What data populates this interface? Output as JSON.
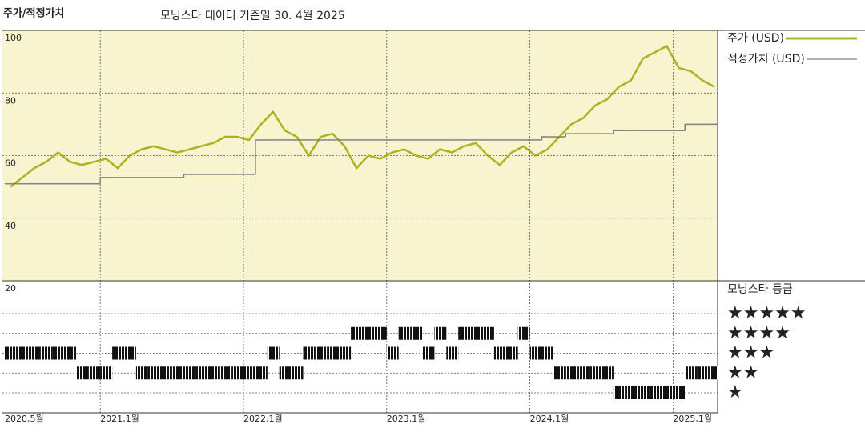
{
  "chart_data": [
    {
      "type": "line",
      "title": "주가/적정가치",
      "subtitle": "모닝스타 데이터 기준일 30. 4월 2025",
      "x": [
        "2020-05",
        "2020-06",
        "2020-07",
        "2020-08",
        "2020-09",
        "2020-10",
        "2020-11",
        "2020-12",
        "2021-01",
        "2021-02",
        "2021-03",
        "2021-04",
        "2021-05",
        "2021-06",
        "2021-07",
        "2021-08",
        "2021-09",
        "2021-10",
        "2021-11",
        "2021-12",
        "2022-01",
        "2022-02",
        "2022-03",
        "2022-04",
        "2022-05",
        "2022-06",
        "2022-07",
        "2022-08",
        "2022-09",
        "2022-10",
        "2022-11",
        "2022-12",
        "2023-01",
        "2023-02",
        "2023-03",
        "2023-04",
        "2023-05",
        "2023-06",
        "2023-07",
        "2023-08",
        "2023-09",
        "2023-10",
        "2023-11",
        "2023-12",
        "2024-01",
        "2024-02",
        "2024-03",
        "2024-04",
        "2024-05",
        "2024-06",
        "2024-07",
        "2024-08",
        "2024-09",
        "2024-10",
        "2024-11",
        "2024-12",
        "2025-01",
        "2025-02",
        "2025-03",
        "2025-04"
      ],
      "series": [
        {
          "name": "주가 (USD)",
          "color": "#a9b41f",
          "values": [
            50,
            53,
            56,
            58,
            61,
            58,
            57,
            58,
            59,
            56,
            60,
            62,
            63,
            62,
            61,
            62,
            63,
            64,
            66,
            66,
            65,
            70,
            74,
            68,
            66,
            60,
            66,
            67,
            63,
            56,
            60,
            59,
            61,
            62,
            60,
            59,
            62,
            61,
            63,
            64,
            60,
            57,
            61,
            63,
            60,
            62,
            66,
            70,
            72,
            76,
            78,
            82,
            84,
            91,
            93,
            95,
            88,
            87,
            84,
            82
          ]
        },
        {
          "name": "적정가치 (USD)",
          "color": "#808080",
          "step": true,
          "values": [
            51,
            51,
            51,
            51,
            51,
            51,
            51,
            51,
            53,
            53,
            53,
            53,
            53,
            53,
            53,
            54,
            54,
            54,
            54,
            54,
            54,
            65,
            65,
            65,
            65,
            65,
            65,
            65,
            65,
            65,
            65,
            65,
            65,
            65,
            65,
            65,
            65,
            65,
            65,
            65,
            65,
            65,
            65,
            65,
            65,
            66,
            66,
            67,
            67,
            67,
            67,
            68,
            68,
            68,
            68,
            68,
            68,
            70,
            70,
            70
          ]
        }
      ],
      "ylim": [
        20,
        100
      ],
      "yticks": [
        20,
        40,
        60,
        80,
        100
      ],
      "xticks": [
        {
          "value": "2020-05",
          "label": "2020,5월"
        },
        {
          "value": "2021-01",
          "label": "2021,1월"
        },
        {
          "value": "2022-01",
          "label": "2022,1월"
        },
        {
          "value": "2023-01",
          "label": "2023,1월"
        },
        {
          "value": "2024-01",
          "label": "2024,1월"
        },
        {
          "value": "2025-01",
          "label": "2025,1월"
        }
      ],
      "grid": true,
      "background": "#f8f4cf"
    },
    {
      "type": "rating",
      "title": "모닝스타 등급",
      "color": "#111111",
      "values": [
        3,
        3,
        3,
        3,
        3,
        3,
        2,
        2,
        2,
        3,
        3,
        2,
        2,
        2,
        2,
        2,
        2,
        2,
        2,
        2,
        2,
        2,
        3,
        2,
        2,
        3,
        3,
        3,
        3,
        4,
        4,
        4,
        3,
        4,
        4,
        3,
        4,
        3,
        4,
        4,
        4,
        3,
        3,
        4,
        3,
        3,
        2,
        2,
        2,
        2,
        2,
        1,
        1,
        1,
        1,
        1,
        1,
        2,
        2,
        2
      ],
      "yticks": [
        {
          "value": 5,
          "label": "★★★★★"
        },
        {
          "value": 4,
          "label": "★★★★"
        },
        {
          "value": 3,
          "label": "★★★"
        },
        {
          "value": 2,
          "label": "★★"
        },
        {
          "value": 1,
          "label": "★"
        }
      ]
    }
  ]
}
